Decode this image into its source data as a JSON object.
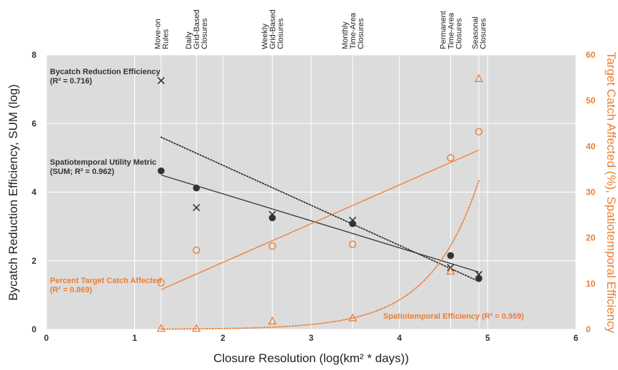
{
  "chart_data": {
    "type": "scatter",
    "xlabel": "Closure Resolution (log(km² * days))",
    "ylabel": "Bycatch Reduction Efficiency, SUM (log)",
    "y2label": "Target Catch Affected (%), Spatiotemporal Efficiency",
    "xlim": [
      0,
      6
    ],
    "ylim": [
      0,
      8
    ],
    "y2lim": [
      0,
      60
    ],
    "xticks": [
      "0",
      "1",
      "2",
      "3",
      "4",
      "5",
      "6"
    ],
    "yticks": [
      "0",
      "2",
      "4",
      "6",
      "8"
    ],
    "y2ticks": [
      "0",
      "10",
      "20",
      "30",
      "40",
      "50",
      "60"
    ],
    "grid": true,
    "colors": {
      "dark": "#333333",
      "orange": "#ED7D31",
      "plot_bg": "#DCDCDC",
      "grid": "#FFFFFF"
    },
    "categories": [
      {
        "lines": [
          "Move-on",
          "Rules"
        ],
        "x": 1.3
      },
      {
        "lines": [
          "Daily",
          "Grid-Based",
          "Closures"
        ],
        "x": 1.7
      },
      {
        "lines": [
          "Weekly",
          "Grid-Based",
          "Closures"
        ],
        "x": 2.56
      },
      {
        "lines": [
          "Monthly",
          "Time-Area",
          "Closures"
        ],
        "x": 3.47
      },
      {
        "lines": [
          "Permanent",
          "Time-Area",
          "Closures"
        ],
        "x": 4.58
      },
      {
        "lines": [
          "Seasonal",
          "Closures"
        ],
        "x": 4.9
      }
    ],
    "series": [
      {
        "key": "bycatch",
        "axis": "left",
        "marker": "x",
        "color": "#333333",
        "points": [
          [
            1.3,
            7.25
          ],
          [
            1.7,
            3.55
          ],
          [
            2.56,
            3.35
          ],
          [
            3.47,
            3.18
          ],
          [
            4.58,
            1.8
          ],
          [
            4.9,
            1.6
          ]
        ],
        "fit": {
          "kind": "linear",
          "style": "dotted",
          "x": [
            1.3,
            4.9
          ],
          "y": [
            5.6,
            1.4
          ]
        },
        "annotation": {
          "lines": [
            "Bycatch Reduction Efficiency",
            "(R² = 0.716)"
          ]
        }
      },
      {
        "key": "utility",
        "axis": "left",
        "marker": "filled-circle",
        "color": "#333333",
        "points": [
          [
            1.3,
            4.62
          ],
          [
            1.7,
            4.12
          ],
          [
            2.56,
            3.25
          ],
          [
            3.47,
            3.08
          ],
          [
            4.58,
            2.15
          ],
          [
            4.9,
            1.48
          ]
        ],
        "fit": {
          "kind": "linear",
          "style": "solid",
          "x": [
            1.3,
            4.9
          ],
          "y": [
            4.5,
            1.67
          ]
        },
        "annotation": {
          "lines": [
            "Spatiotemporal Utility Metric",
            "(SUM; R² = 0.962)"
          ]
        }
      },
      {
        "key": "target_catch",
        "axis": "right",
        "marker": "open-circle",
        "color": "#ED7D31",
        "points": [
          [
            1.3,
            10.2
          ],
          [
            1.7,
            17.3
          ],
          [
            2.56,
            18.2
          ],
          [
            3.47,
            18.6
          ],
          [
            4.58,
            37.5
          ],
          [
            4.9,
            43.2
          ]
        ],
        "fit": {
          "kind": "linear",
          "style": "solid",
          "x": [
            1.3,
            4.9
          ],
          "y": [
            8.7,
            39.2
          ]
        },
        "annotation": {
          "lines": [
            "Percent Target Catch Affected",
            "(R² = 0.869)"
          ]
        }
      },
      {
        "key": "spatiotemporal",
        "axis": "right",
        "marker": "open-triangle",
        "color": "#ED7D31",
        "points": [
          [
            1.3,
            0.2
          ],
          [
            1.7,
            0.2
          ],
          [
            2.56,
            1.8
          ],
          [
            3.47,
            2.5
          ],
          [
            4.58,
            12.7
          ],
          [
            4.9,
            54.8
          ]
        ],
        "fit": {
          "kind": "exponential",
          "style": "dotted",
          "x": [
            1.3,
            4.9
          ],
          "y": [
            0.05,
            32.5
          ]
        },
        "annotation": {
          "lines": [
            "Spatiotemporal Efficiency (R² = 0.959)"
          ]
        }
      }
    ]
  }
}
